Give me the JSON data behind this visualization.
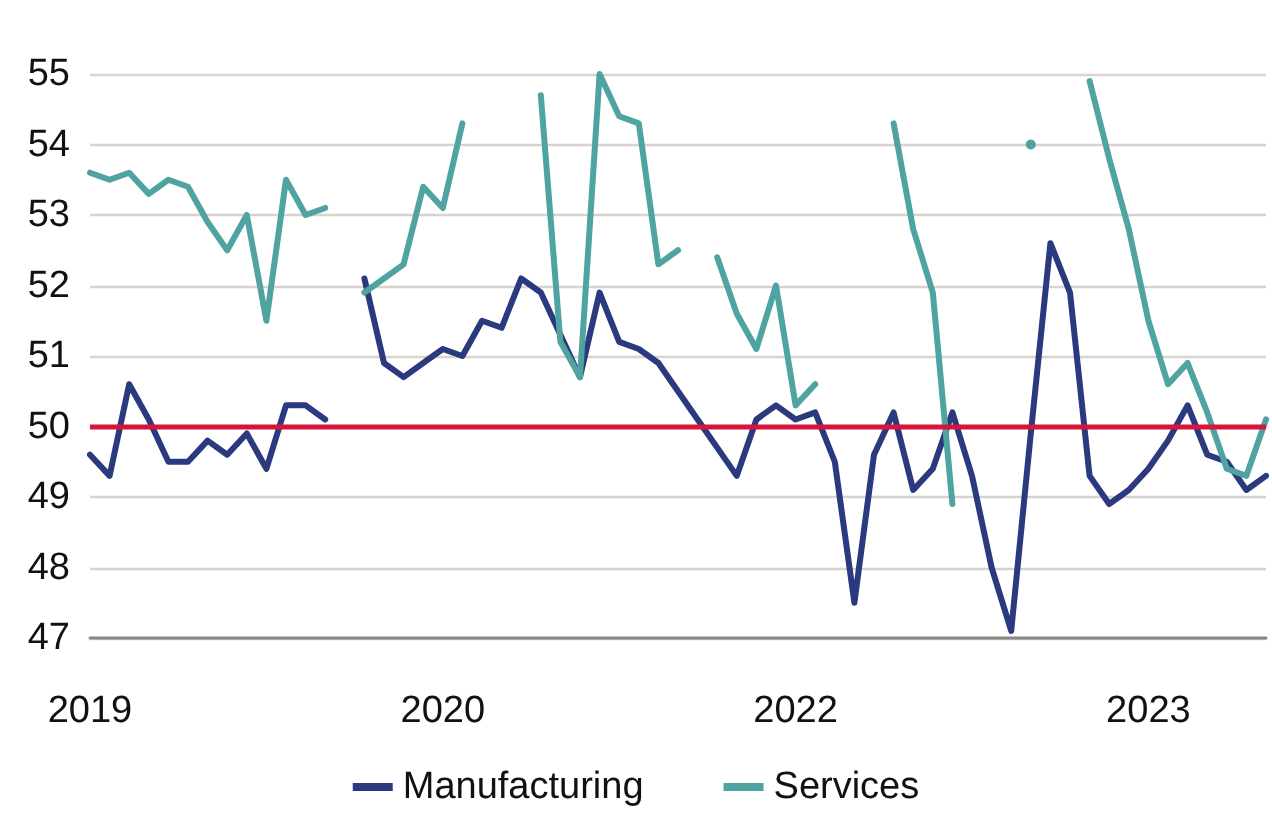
{
  "chart_data": {
    "type": "line",
    "categories": [
      "2019",
      null,
      null,
      null,
      null,
      null,
      null,
      null,
      null,
      null,
      null,
      null,
      null,
      null,
      null,
      null,
      null,
      null,
      "2020",
      null,
      null,
      null,
      null,
      null,
      null,
      null,
      null,
      null,
      null,
      null,
      null,
      null,
      null,
      null,
      null,
      null,
      "2022",
      null,
      null,
      null,
      null,
      null,
      null,
      null,
      null,
      null,
      null,
      null,
      null,
      null,
      null,
      null,
      null,
      null,
      "2023",
      null,
      null,
      null,
      null,
      null,
      null
    ],
    "series": [
      {
        "name": "Manufacturing",
        "color": "#2b3a7e",
        "values": [
          49.6,
          49.3,
          50.6,
          50.1,
          49.5,
          49.5,
          49.8,
          49.6,
          49.9,
          49.4,
          50.3,
          50.3,
          50.1,
          null,
          52.1,
          50.9,
          50.7,
          50.9,
          51.1,
          51.0,
          51.5,
          51.4,
          52.1,
          51.9,
          51.3,
          50.7,
          51.9,
          51.2,
          51.1,
          50.9,
          50.5,
          50.1,
          49.7,
          49.3,
          50.1,
          50.3,
          50.1,
          50.2,
          49.5,
          47.5,
          49.6,
          50.2,
          49.1,
          49.4,
          50.2,
          49.3,
          48.0,
          47.1,
          49.9,
          52.6,
          51.9,
          49.3,
          48.9,
          49.1,
          49.4,
          49.8,
          50.3,
          49.6,
          49.5,
          49.1,
          49.3
        ]
      },
      {
        "name": "Services",
        "color": "#4fa3a0",
        "values": [
          53.6,
          53.5,
          53.6,
          53.3,
          53.5,
          53.4,
          52.9,
          52.5,
          53.0,
          51.5,
          53.5,
          53.0,
          53.1,
          null,
          51.9,
          52.1,
          52.3,
          53.4,
          53.1,
          54.3,
          null,
          null,
          null,
          54.7,
          51.2,
          50.7,
          55.0,
          54.4,
          54.3,
          52.3,
          52.5,
          null,
          52.4,
          51.6,
          51.1,
          52.0,
          50.3,
          50.6,
          null,
          null,
          null,
          54.3,
          52.8,
          51.9,
          48.9,
          null,
          null,
          null,
          54.0,
          null,
          null,
          54.9,
          53.8,
          52.8,
          51.5,
          50.6,
          50.9,
          50.2,
          49.4,
          49.3,
          50.1
        ]
      }
    ],
    "ylim": [
      47,
      55
    ],
    "yticks": [
      47,
      48,
      49,
      50,
      51,
      52,
      53,
      54,
      55
    ],
    "ref_lines": [
      {
        "axis": "y",
        "value": 50,
        "color": "#d7143c"
      }
    ],
    "grid": "y",
    "legend": "bottom",
    "marker": "none",
    "line_style": "solid"
  }
}
